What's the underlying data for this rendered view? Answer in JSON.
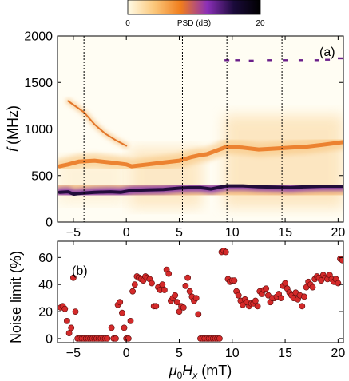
{
  "chart_data": [
    {
      "type": "heatmap",
      "panel_label": "(a)",
      "xlabel": "",
      "ylabel_var": "f",
      "ylabel_unit": "(MHz)",
      "xlim": [
        -6.5,
        20.5
      ],
      "ylim": [
        0,
        2000
      ],
      "xticks": [
        -5,
        0,
        5,
        10,
        15,
        20
      ],
      "yticks": [
        0,
        500,
        1000,
        1500,
        2000
      ],
      "colorbar": {
        "label": "PSD (dB)",
        "min": 0,
        "max": 20,
        "min_label": "0",
        "max_label": "20",
        "colors": [
          "#fffbe6",
          "#fbc77a",
          "#f07d1c",
          "#8b2fb8",
          "#1a0a3a",
          "#000000"
        ]
      },
      "vlines": [
        -4,
        5.3,
        9.5,
        14.7
      ],
      "modes": [
        {
          "name": "main",
          "points": [
            [
              -6.3,
              320
            ],
            [
              -5.5,
              325
            ],
            [
              -5,
              300
            ],
            [
              -4.2,
              310
            ],
            [
              -3,
              320
            ],
            [
              -1.5,
              325
            ],
            [
              -0.5,
              320
            ],
            [
              0.5,
              340
            ],
            [
              2,
              345
            ],
            [
              3.5,
              350
            ],
            [
              5,
              365
            ],
            [
              6,
              370
            ],
            [
              7,
              370
            ],
            [
              8,
              355
            ],
            [
              9.5,
              390
            ],
            [
              11,
              390
            ],
            [
              12.5,
              380
            ],
            [
              14,
              375
            ],
            [
              15.5,
              370
            ],
            [
              17,
              380
            ],
            [
              18.5,
              385
            ],
            [
              20.5,
              385
            ]
          ]
        },
        {
          "name": "upper",
          "points": [
            [
              -6.3,
              600
            ],
            [
              -5.5,
              620
            ],
            [
              -4.5,
              650
            ],
            [
              -3,
              660
            ],
            [
              -1.5,
              640
            ],
            [
              0,
              620
            ],
            [
              0.5,
              600
            ],
            [
              2,
              620
            ],
            [
              3.5,
              640
            ],
            [
              5,
              660
            ],
            [
              6.2,
              700
            ],
            [
              7,
              720
            ],
            [
              7.6,
              730
            ],
            [
              9.5,
              810
            ],
            [
              11,
              800
            ],
            [
              12.5,
              780
            ],
            [
              14,
              790
            ],
            [
              15.5,
              800
            ],
            [
              17,
              810
            ],
            [
              18.5,
              830
            ],
            [
              20.5,
              860
            ]
          ]
        },
        {
          "name": "high",
          "points": [
            [
              -5.5,
              1300
            ],
            [
              -4,
              1180
            ],
            [
              -3,
              1050
            ],
            [
              -2,
              950
            ],
            [
              -1,
              880
            ],
            [
              0,
              820
            ]
          ]
        }
      ],
      "speckles": [
        [
          13.5,
          1740
        ],
        [
          15,
          1740
        ],
        [
          16.5,
          1740
        ],
        [
          18,
          1740
        ],
        [
          19,
          1745
        ],
        [
          20.2,
          1760
        ],
        [
          9.5,
          1740
        ],
        [
          10.5,
          1740
        ],
        [
          11.8,
          1735
        ]
      ]
    },
    {
      "type": "scatter",
      "panel_label": "(b)",
      "xlabel_var": "μ",
      "xlabel_sub": "0",
      "xlabel_var2": "H",
      "xlabel_sub2": "x",
      "xlabel_unit": "(mT)",
      "ylabel": "Noise limit (%)",
      "xlim": [
        -6.5,
        20.5
      ],
      "ylim": [
        -3,
        72
      ],
      "xticks": [
        -5,
        0,
        5,
        10,
        15,
        20
      ],
      "yticks": [
        0,
        20,
        40,
        60
      ],
      "marker_color": "#d42a2a",
      "points": [
        [
          -6.2,
          23
        ],
        [
          -6.0,
          24
        ],
        [
          -5.8,
          22
        ],
        [
          -5.6,
          13
        ],
        [
          -5.4,
          4
        ],
        [
          -5.2,
          8
        ],
        [
          -5.0,
          45
        ],
        [
          -4.8,
          20
        ],
        [
          -4.6,
          0
        ],
        [
          -4.4,
          0
        ],
        [
          -4.2,
          0
        ],
        [
          -4.0,
          0
        ],
        [
          -3.8,
          0
        ],
        [
          -3.6,
          0
        ],
        [
          -3.4,
          0
        ],
        [
          -3.2,
          0
        ],
        [
          -3.0,
          0
        ],
        [
          -2.8,
          0
        ],
        [
          -2.6,
          0
        ],
        [
          -2.4,
          0
        ],
        [
          -2.2,
          0
        ],
        [
          -2.0,
          0
        ],
        [
          -1.8,
          0
        ],
        [
          -1.4,
          8
        ],
        [
          -1.2,
          0
        ],
        [
          -1.0,
          0
        ],
        [
          -0.8,
          25
        ],
        [
          -0.6,
          27
        ],
        [
          -0.4,
          19
        ],
        [
          -0.2,
          8
        ],
        [
          0.0,
          0
        ],
        [
          0.2,
          0
        ],
        [
          0.4,
          13
        ],
        [
          0.6,
          35
        ],
        [
          0.8,
          40
        ],
        [
          1.0,
          46
        ],
        [
          1.2,
          45
        ],
        [
          1.4,
          44
        ],
        [
          1.6,
          43
        ],
        [
          1.8,
          46
        ],
        [
          2.0,
          45
        ],
        [
          2.2,
          44
        ],
        [
          2.4,
          41
        ],
        [
          2.6,
          24
        ],
        [
          2.8,
          24
        ],
        [
          3.0,
          38
        ],
        [
          3.2,
          36
        ],
        [
          3.4,
          40
        ],
        [
          3.6,
          36
        ],
        [
          3.8,
          51
        ],
        [
          4.0,
          48
        ],
        [
          4.2,
          28
        ],
        [
          4.4,
          30
        ],
        [
          4.6,
          32
        ],
        [
          4.8,
          27
        ],
        [
          5.0,
          20
        ],
        [
          5.2,
          24
        ],
        [
          5.4,
          23
        ],
        [
          5.6,
          39
        ],
        [
          5.8,
          45
        ],
        [
          6.0,
          35
        ],
        [
          6.2,
          31
        ],
        [
          6.4,
          28
        ],
        [
          6.6,
          30
        ],
        [
          6.8,
          18
        ],
        [
          7.0,
          0
        ],
        [
          7.2,
          0
        ],
        [
          7.4,
          0
        ],
        [
          7.6,
          0
        ],
        [
          7.8,
          0
        ],
        [
          8.0,
          0
        ],
        [
          8.2,
          0
        ],
        [
          8.4,
          0
        ],
        [
          8.6,
          0
        ],
        [
          8.8,
          0
        ],
        [
          9.0,
          64
        ],
        [
          9.2,
          65
        ],
        [
          9.4,
          64
        ],
        [
          9.6,
          44
        ],
        [
          9.8,
          42
        ],
        [
          10.0,
          43
        ],
        [
          10.2,
          43
        ],
        [
          10.4,
          35
        ],
        [
          10.6,
          32
        ],
        [
          10.8,
          28
        ],
        [
          11.0,
          25
        ],
        [
          11.2,
          29
        ],
        [
          11.4,
          27
        ],
        [
          11.6,
          24
        ],
        [
          11.8,
          26
        ],
        [
          12.0,
          26
        ],
        [
          12.2,
          28
        ],
        [
          12.4,
          24
        ],
        [
          12.6,
          35
        ],
        [
          12.8,
          33
        ],
        [
          13.0,
          36
        ],
        [
          13.2,
          37
        ],
        [
          13.4,
          32
        ],
        [
          13.6,
          27
        ],
        [
          13.8,
          30
        ],
        [
          14.0,
          30
        ],
        [
          14.2,
          31
        ],
        [
          14.4,
          33
        ],
        [
          14.6,
          30
        ],
        [
          14.8,
          39
        ],
        [
          15.0,
          41
        ],
        [
          15.2,
          37
        ],
        [
          15.4,
          34
        ],
        [
          15.6,
          32
        ],
        [
          15.8,
          30
        ],
        [
          16.0,
          34
        ],
        [
          16.2,
          29
        ],
        [
          16.4,
          32
        ],
        [
          16.6,
          24
        ],
        [
          16.8,
          31
        ],
        [
          17.0,
          38
        ],
        [
          17.2,
          42
        ],
        [
          17.4,
          40
        ],
        [
          17.6,
          38
        ],
        [
          17.8,
          44
        ],
        [
          18.0,
          46
        ],
        [
          18.2,
          45
        ],
        [
          18.4,
          43
        ],
        [
          18.6,
          47
        ],
        [
          18.8,
          45
        ],
        [
          19.0,
          44
        ],
        [
          19.2,
          47
        ],
        [
          19.4,
          44
        ],
        [
          19.6,
          42
        ],
        [
          19.8,
          44
        ],
        [
          20.0,
          41
        ],
        [
          20.2,
          59
        ],
        [
          20.4,
          58
        ]
      ]
    }
  ]
}
